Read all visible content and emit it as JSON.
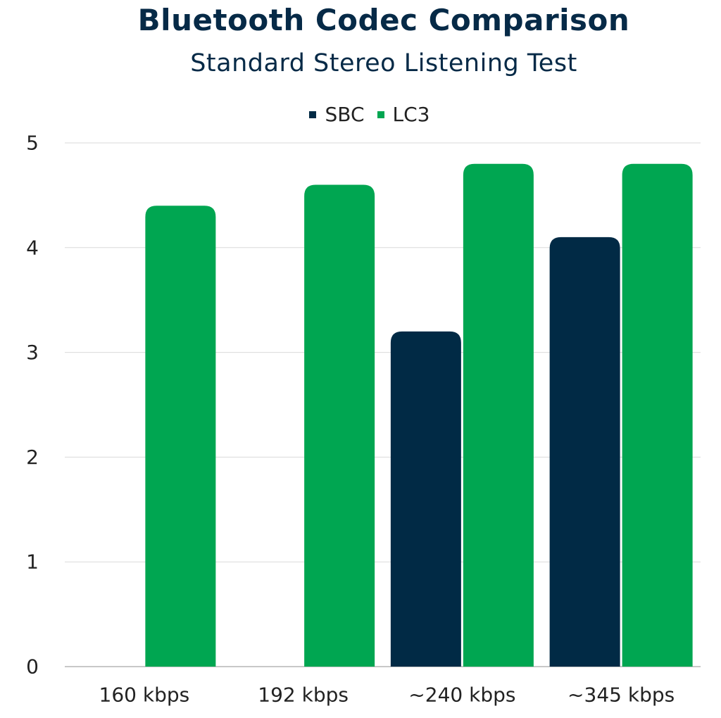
{
  "chart_data": {
    "type": "bar",
    "title": "Bluetooth Codec Comparison",
    "subtitle": "Standard Stereo Listening Test",
    "xlabel": "",
    "ylabel": "",
    "categories": [
      "160 kbps",
      "192 kbps",
      "~240 kbps",
      "~345 kbps"
    ],
    "series": [
      {
        "name": "SBC",
        "color": "#012a45",
        "values": [
          null,
          null,
          3.2,
          4.1
        ]
      },
      {
        "name": "LC3",
        "color": "#00a651",
        "values": [
          4.4,
          4.6,
          4.8,
          4.8
        ]
      }
    ],
    "ylim": [
      0,
      5
    ],
    "yticks": [
      0,
      1,
      2,
      3,
      4,
      5
    ],
    "grid": true,
    "legend_position": "top"
  }
}
